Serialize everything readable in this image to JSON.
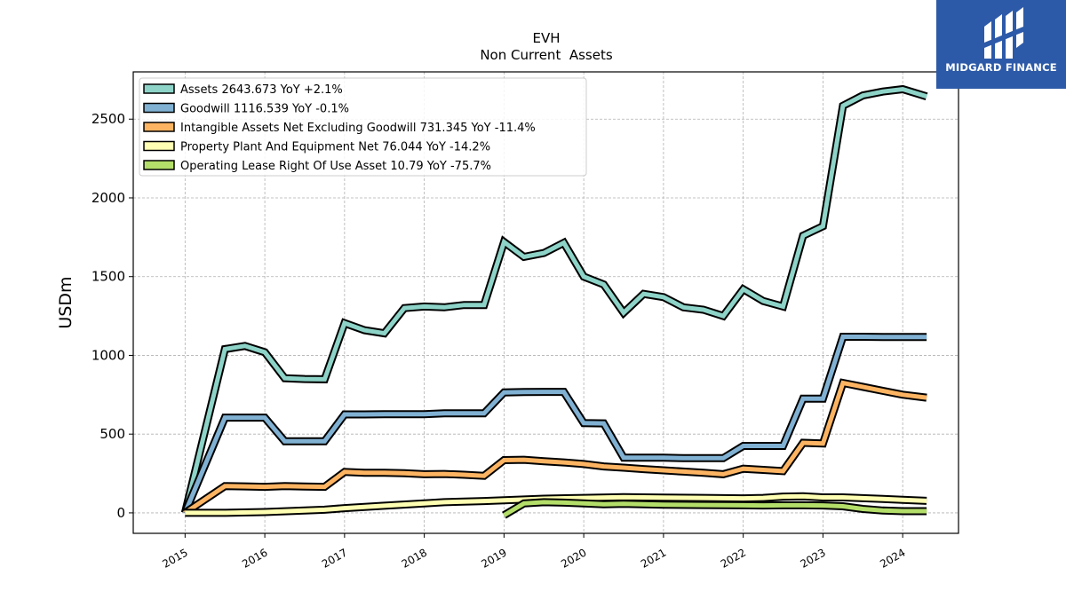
{
  "chart_data": {
    "type": "line",
    "title": "EVH",
    "subtitle": "Non Current  Assets",
    "ylabel": "USDm",
    "xlabel": "",
    "ylim": [
      -130,
      2800
    ],
    "xlim": [
      2014.35,
      2024.7
    ],
    "yticks": [
      0,
      500,
      1000,
      1500,
      2000,
      2500
    ],
    "xticks": [
      2015,
      2016,
      2017,
      2018,
      2019,
      2020,
      2021,
      2022,
      2023,
      2024
    ],
    "grid": true,
    "legend_position": "top-left",
    "series": [
      {
        "name": "Assets",
        "legend_label": "Assets  2643.673 YoY +2.1%",
        "color": "#8dd3c7",
        "points": [
          [
            2015.0,
            0
          ],
          [
            2015.5,
            1040
          ],
          [
            2015.75,
            1060
          ],
          [
            2016.0,
            1020
          ],
          [
            2016.25,
            855
          ],
          [
            2016.5,
            850
          ],
          [
            2016.75,
            848
          ],
          [
            2017.0,
            1205
          ],
          [
            2017.25,
            1160
          ],
          [
            2017.5,
            1140
          ],
          [
            2017.75,
            1300
          ],
          [
            2018.0,
            1310
          ],
          [
            2018.25,
            1305
          ],
          [
            2018.5,
            1320
          ],
          [
            2018.75,
            1320
          ],
          [
            2019.0,
            1720
          ],
          [
            2019.25,
            1625
          ],
          [
            2019.5,
            1650
          ],
          [
            2019.75,
            1715
          ],
          [
            2020.0,
            1500
          ],
          [
            2020.25,
            1450
          ],
          [
            2020.5,
            1270
          ],
          [
            2020.75,
            1390
          ],
          [
            2021.0,
            1370
          ],
          [
            2021.25,
            1305
          ],
          [
            2021.5,
            1290
          ],
          [
            2021.75,
            1250
          ],
          [
            2022.0,
            1420
          ],
          [
            2022.25,
            1345
          ],
          [
            2022.5,
            1310
          ],
          [
            2022.75,
            1760
          ],
          [
            2023.0,
            1820
          ],
          [
            2023.25,
            2585
          ],
          [
            2023.5,
            2650
          ],
          [
            2023.75,
            2675
          ],
          [
            2024.0,
            2690
          ],
          [
            2024.3,
            2643.673
          ]
        ]
      },
      {
        "name": "Goodwill",
        "legend_label": "Goodwill  1116.539 YoY -0.1%",
        "color": "#80b1d3",
        "points": [
          [
            2015.0,
            0
          ],
          [
            2015.5,
            605
          ],
          [
            2015.75,
            605
          ],
          [
            2016.0,
            605
          ],
          [
            2016.25,
            455
          ],
          [
            2016.5,
            455
          ],
          [
            2016.75,
            455
          ],
          [
            2017.0,
            625
          ],
          [
            2017.25,
            625
          ],
          [
            2017.5,
            627
          ],
          [
            2017.75,
            627
          ],
          [
            2018.0,
            627
          ],
          [
            2018.25,
            632
          ],
          [
            2018.5,
            632
          ],
          [
            2018.75,
            632
          ],
          [
            2019.0,
            765
          ],
          [
            2019.25,
            767
          ],
          [
            2019.5,
            768
          ],
          [
            2019.75,
            768
          ],
          [
            2020.0,
            570
          ],
          [
            2020.25,
            568
          ],
          [
            2020.5,
            350
          ],
          [
            2020.75,
            350
          ],
          [
            2021.0,
            350
          ],
          [
            2021.25,
            347
          ],
          [
            2021.5,
            347
          ],
          [
            2021.75,
            347
          ],
          [
            2022.0,
            425
          ],
          [
            2022.25,
            425
          ],
          [
            2022.5,
            425
          ],
          [
            2022.75,
            725
          ],
          [
            2023.0,
            725
          ],
          [
            2023.25,
            1118
          ],
          [
            2023.5,
            1118
          ],
          [
            2023.75,
            1117
          ],
          [
            2024.0,
            1117
          ],
          [
            2024.3,
            1116.539
          ]
        ]
      },
      {
        "name": "Intangible Assets Net Excluding Goodwill",
        "legend_label": "Intangible Assets Net Excluding Goodwill  731.345 YoY -11.4%",
        "color": "#fdb462",
        "points": [
          [
            2015.0,
            0
          ],
          [
            2015.5,
            170
          ],
          [
            2015.75,
            168
          ],
          [
            2016.0,
            165
          ],
          [
            2016.25,
            170
          ],
          [
            2016.5,
            167
          ],
          [
            2016.75,
            165
          ],
          [
            2017.0,
            260
          ],
          [
            2017.25,
            255
          ],
          [
            2017.5,
            255
          ],
          [
            2017.75,
            252
          ],
          [
            2018.0,
            245
          ],
          [
            2018.25,
            247
          ],
          [
            2018.5,
            242
          ],
          [
            2018.75,
            235
          ],
          [
            2019.0,
            335
          ],
          [
            2019.25,
            337
          ],
          [
            2019.5,
            328
          ],
          [
            2019.75,
            320
          ],
          [
            2020.0,
            310
          ],
          [
            2020.25,
            295
          ],
          [
            2020.5,
            287
          ],
          [
            2020.75,
            278
          ],
          [
            2021.0,
            270
          ],
          [
            2021.25,
            262
          ],
          [
            2021.5,
            255
          ],
          [
            2021.75,
            245
          ],
          [
            2022.0,
            280
          ],
          [
            2022.25,
            273
          ],
          [
            2022.5,
            265
          ],
          [
            2022.75,
            445
          ],
          [
            2023.0,
            440
          ],
          [
            2023.25,
            825
          ],
          [
            2023.5,
            800
          ],
          [
            2023.75,
            775
          ],
          [
            2024.0,
            750
          ],
          [
            2024.3,
            731.345
          ]
        ]
      },
      {
        "name": "Property Plant And Equipment Net",
        "legend_label": "Property Plant And Equipment Net  76.044 YoY -14.2%",
        "color": "#ffffb3",
        "points": [
          [
            2015.0,
            0
          ],
          [
            2015.5,
            0
          ],
          [
            2016.0,
            5
          ],
          [
            2016.5,
            15
          ],
          [
            2016.75,
            20
          ],
          [
            2017.0,
            30
          ],
          [
            2017.5,
            45
          ],
          [
            2018.0,
            60
          ],
          [
            2018.25,
            68
          ],
          [
            2018.75,
            75
          ],
          [
            2019.0,
            80
          ],
          [
            2019.5,
            90
          ],
          [
            2020.0,
            95
          ],
          [
            2020.5,
            100
          ],
          [
            2021.0,
            97
          ],
          [
            2021.5,
            95
          ],
          [
            2022.0,
            92
          ],
          [
            2022.25,
            95
          ],
          [
            2022.5,
            103
          ],
          [
            2022.75,
            105
          ],
          [
            2023.0,
            98
          ],
          [
            2023.25,
            98
          ],
          [
            2023.75,
            88
          ],
          [
            2024.0,
            83
          ],
          [
            2024.3,
            76.044
          ]
        ]
      },
      {
        "name": "Operating Lease Right Of Use Asset",
        "legend_label": "Operating Lease Right Of Use Asset  10.79 YoY -75.7%",
        "color": "#b3de69",
        "points": [
          [
            2019.0,
            -15
          ],
          [
            2019.25,
            60
          ],
          [
            2019.5,
            68
          ],
          [
            2019.75,
            65
          ],
          [
            2020.0,
            60
          ],
          [
            2020.25,
            55
          ],
          [
            2020.5,
            57
          ],
          [
            2020.75,
            55
          ],
          [
            2021.0,
            52
          ],
          [
            2021.5,
            50
          ],
          [
            2022.0,
            48
          ],
          [
            2022.25,
            47
          ],
          [
            2022.5,
            48
          ],
          [
            2022.75,
            48
          ],
          [
            2023.0,
            47
          ],
          [
            2023.25,
            42
          ],
          [
            2023.5,
            25
          ],
          [
            2023.75,
            15
          ],
          [
            2024.0,
            11
          ],
          [
            2024.3,
            10.79
          ]
        ]
      }
    ]
  },
  "logo": {
    "text": "MIDGARD FINANCE",
    "background": "#2d5aa8"
  }
}
